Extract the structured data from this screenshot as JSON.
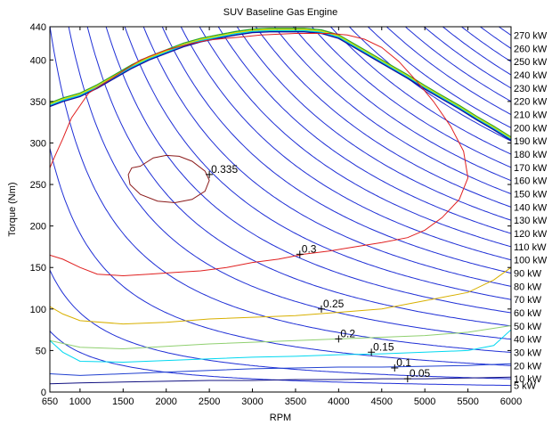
{
  "chart_data": {
    "type": "line",
    "title": "SUV Baseline Gas Engine",
    "xlabel": "RPM",
    "ylabel": "Torque (Nm)",
    "xlim": [
      650,
      6000
    ],
    "ylim": [
      0,
      440
    ],
    "x_ticks": [
      "650",
      "1000",
      "1500",
      "2000",
      "2500",
      "3000",
      "3500",
      "4000",
      "4500",
      "5000",
      "5500",
      "6000"
    ],
    "y_ticks": [
      "0",
      "50",
      "100",
      "150",
      "200",
      "250",
      "300",
      "350",
      "400",
      "440"
    ],
    "grid": false,
    "power_lines": {
      "name": "constant power",
      "values_kw": [
        5,
        10,
        20,
        30,
        40,
        50,
        60,
        70,
        80,
        90,
        100,
        110,
        120,
        130,
        140,
        150,
        160,
        170,
        180,
        190,
        200,
        210,
        220,
        230,
        240,
        250,
        260,
        270
      ],
      "labels": [
        "5 kW",
        "10 kW",
        "20 kW",
        "30 kW",
        "40 kW",
        "50 kW",
        "60 kW",
        "70 kW",
        "80 kW",
        "90 kW",
        "100 kW",
        "110 kW",
        "120 kW",
        "130 kW",
        "140 kW",
        "150 kW",
        "160 kW",
        "170 kW",
        "180 kW",
        "190 kW",
        "200 kW",
        "210 kW",
        "220 kW",
        "230 kW",
        "240 kW",
        "250 kW",
        "260 kW",
        "270 kW"
      ],
      "color": "#1f2fd6"
    },
    "max_torque_curve": {
      "x": [
        650,
        800,
        1000,
        1200,
        1400,
        1600,
        1800,
        2000,
        2200,
        2400,
        2600,
        2800,
        3000,
        3200,
        3400,
        3600,
        3800,
        4000,
        4200,
        4400,
        4600,
        4800,
        5000,
        5200,
        5400,
        5600,
        5800,
        6000
      ],
      "y": [
        346,
        352,
        358,
        368,
        380,
        392,
        402,
        410,
        418,
        424,
        428,
        432,
        435,
        436,
        436,
        436,
        434,
        428,
        416,
        404,
        392,
        380,
        367,
        355,
        343,
        330,
        318,
        305
      ],
      "colors": [
        "#2aa52a",
        "#e8e000",
        "#00d0e0",
        "#1010a0"
      ]
    },
    "series": [
      {
        "name": "0.335",
        "color": "#8b1a1a",
        "closed": true,
        "x": [
          1700,
          1850,
          2000,
          2150,
          2300,
          2450,
          2500,
          2450,
          2300,
          2100,
          1900,
          1700,
          1580,
          1560,
          1600,
          1700
        ],
        "y": [
          272,
          282,
          285,
          284,
          278,
          266,
          255,
          242,
          232,
          228,
          230,
          238,
          250,
          262,
          270,
          272
        ]
      },
      {
        "name": "0.3",
        "color": "#e02020",
        "closed": false,
        "x": [
          650,
          800,
          1000,
          1200,
          1500,
          1800,
          2100,
          2400,
          2700,
          3000,
          3300,
          3600,
          3900,
          4200,
          4500,
          4800,
          5000,
          5200,
          5400,
          5500,
          5450,
          5300,
          5100,
          4900,
          4700,
          4500,
          4300,
          4100,
          3900,
          3700,
          3500,
          3300,
          3100,
          2900,
          2700,
          2500,
          2300,
          2000,
          1700,
          1400,
          1100,
          900,
          800,
          700,
          650
        ],
        "y": [
          165,
          160,
          150,
          142,
          140,
          142,
          144,
          146,
          150,
          156,
          160,
          166,
          170,
          175,
          180,
          186,
          195,
          210,
          232,
          258,
          290,
          320,
          350,
          375,
          398,
          415,
          425,
          430,
          432,
          432,
          432,
          431,
          430,
          428,
          426,
          424,
          420,
          412,
          400,
          380,
          360,
          330,
          305,
          282,
          270
        ]
      },
      {
        "name": "0.25",
        "color": "#d8b000",
        "closed": false,
        "x": [
          650,
          800,
          1000,
          1500,
          2000,
          2500,
          3000,
          3500,
          4000,
          4500,
          5000,
          5500,
          5800,
          6000
        ],
        "y": [
          103,
          94,
          86,
          82,
          84,
          88,
          90,
          92,
          96,
          100,
          110,
          120,
          135,
          150
        ]
      },
      {
        "name": "0.2",
        "color": "#90d070",
        "closed": false,
        "x": [
          650,
          1000,
          1500,
          2000,
          2500,
          3000,
          3500,
          4000,
          4500,
          5000,
          5500,
          6000
        ],
        "y": [
          62,
          54,
          52,
          55,
          58,
          60,
          62,
          64,
          66,
          68,
          72,
          80
        ]
      },
      {
        "name": "0.15",
        "color": "#00d8f0",
        "closed": false,
        "x": [
          650,
          800,
          1000,
          1500,
          2000,
          2500,
          3000,
          3500,
          4000,
          4500,
          5000,
          5500,
          5800,
          6000
        ],
        "y": [
          62,
          48,
          37,
          36,
          38,
          40,
          42,
          43,
          45,
          46,
          48,
          50,
          56,
          75
        ]
      },
      {
        "name": "0.1",
        "color": "#2040d0",
        "closed": false,
        "x": [
          650,
          1000,
          1500,
          2000,
          2500,
          3000,
          3500,
          4000,
          4500,
          5000,
          5500,
          6000
        ],
        "y": [
          22,
          20,
          22,
          24,
          26,
          28,
          29,
          30,
          30,
          31,
          32,
          34
        ]
      },
      {
        "name": "0.05",
        "color": "#101080",
        "closed": false,
        "x": [
          650,
          1000,
          1500,
          2000,
          2500,
          3000,
          3500,
          4000,
          4500,
          5000,
          5500,
          6000
        ],
        "y": [
          10,
          11,
          12,
          13,
          14,
          14,
          15,
          15,
          16,
          16,
          17,
          18
        ]
      }
    ],
    "contour_labels": [
      {
        "text": "0.335",
        "x": 2500,
        "y": 262
      },
      {
        "text": "0.3",
        "x": 3550,
        "y": 166
      },
      {
        "text": "0.25",
        "x": 3800,
        "y": 100
      },
      {
        "text": "0.2",
        "x": 4000,
        "y": 64
      },
      {
        "text": "0.15",
        "x": 4380,
        "y": 48
      },
      {
        "text": "0.1",
        "x": 4650,
        "y": 29
      },
      {
        "text": "0.05",
        "x": 4800,
        "y": 16
      }
    ]
  }
}
